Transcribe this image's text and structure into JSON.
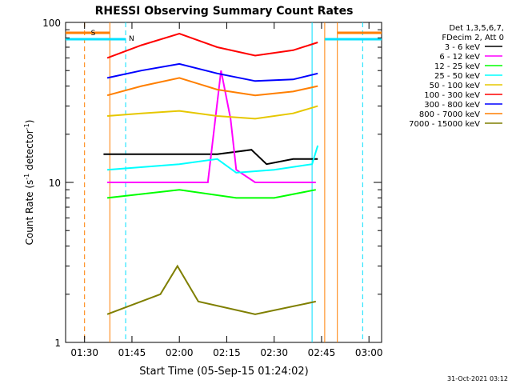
{
  "chart_data": {
    "type": "line",
    "title": "RHESSI Observing Summary Count Rates",
    "xlabel": "Start Time (05-Sep-15 01:24:02)",
    "ylabel_main": "Count Rate (s",
    "ylabel_sup1": "-1",
    "ylabel_mid": " detector",
    "ylabel_sup2": "-1",
    "ylabel_end": ")",
    "y_scale": "log",
    "ylim": [
      1,
      100
    ],
    "xlim": [
      "01:24",
      "03:04"
    ],
    "x_ticks": [
      "01:30",
      "01:45",
      "02:00",
      "02:15",
      "02:30",
      "02:45",
      "03:00"
    ],
    "y_ticks": [
      "1",
      "10",
      "100"
    ],
    "legend_position": "right",
    "legend_header": [
      "Det 1,3,5,6,7,",
      "FDecim 2, Att 0"
    ],
    "markers": {
      "S": "S",
      "N": "N"
    },
    "vlines": [
      {
        "time": "01:30",
        "color": "#ff7f00",
        "style": "dashed"
      },
      {
        "time": "01:38",
        "color": "#ff7f00",
        "style": "solid"
      },
      {
        "time": "01:43",
        "color": "#00e0ff",
        "style": "dashed"
      },
      {
        "time": "02:42",
        "color": "#00e0ff",
        "style": "solid"
      },
      {
        "time": "02:46",
        "color": "#ff7f00",
        "style": "solid"
      },
      {
        "time": "02:50",
        "color": "#ff7f00",
        "style": "solid"
      },
      {
        "time": "02:58",
        "color": "#00e0ff",
        "style": "dashed"
      }
    ],
    "series": [
      {
        "name": "3 - 6 keV",
        "color": "#000000",
        "values": [
          [
            1.6,
            15
          ],
          [
            2.2,
            15
          ],
          [
            2.38,
            16
          ],
          [
            2.46,
            13
          ],
          [
            2.6,
            14
          ],
          [
            2.73,
            14
          ]
        ]
      },
      {
        "name": "6 - 12 keV",
        "color": "#ff00ff",
        "values": [
          [
            1.62,
            10
          ],
          [
            2.15,
            10
          ],
          [
            2.22,
            50
          ],
          [
            2.27,
            25
          ],
          [
            2.3,
            12
          ],
          [
            2.4,
            10
          ],
          [
            2.72,
            10
          ]
        ]
      },
      {
        "name": "12 - 25 keV",
        "color": "#00ff00",
        "values": [
          [
            1.62,
            8
          ],
          [
            2.0,
            9
          ],
          [
            2.3,
            8
          ],
          [
            2.5,
            8
          ],
          [
            2.72,
            9
          ]
        ]
      },
      {
        "name": "25 - 50 keV",
        "color": "#00ffff",
        "values": [
          [
            1.62,
            12
          ],
          [
            2.0,
            13
          ],
          [
            2.2,
            14
          ],
          [
            2.3,
            11.5
          ],
          [
            2.5,
            12
          ],
          [
            2.7,
            13
          ],
          [
            2.73,
            17
          ]
        ]
      },
      {
        "name": "50 - 100 keV",
        "color": "#e6c700",
        "values": [
          [
            1.62,
            26
          ],
          [
            1.8,
            27
          ],
          [
            2.0,
            28
          ],
          [
            2.2,
            26
          ],
          [
            2.4,
            25
          ],
          [
            2.6,
            27
          ],
          [
            2.73,
            30
          ]
        ]
      },
      {
        "name": "100 - 300 keV",
        "color": "#ff0000",
        "values": [
          [
            1.62,
            60
          ],
          [
            1.8,
            72
          ],
          [
            2.0,
            85
          ],
          [
            2.2,
            70
          ],
          [
            2.4,
            62
          ],
          [
            2.6,
            67
          ],
          [
            2.73,
            75
          ]
        ]
      },
      {
        "name": "300 - 800 keV",
        "color": "#0000ff",
        "values": [
          [
            1.62,
            45
          ],
          [
            1.8,
            50
          ],
          [
            2.0,
            55
          ],
          [
            2.2,
            48
          ],
          [
            2.4,
            43
          ],
          [
            2.6,
            44
          ],
          [
            2.73,
            48
          ]
        ]
      },
      {
        "name": "800 - 7000 keV",
        "color": "#ff7f00",
        "values": [
          [
            1.62,
            35
          ],
          [
            1.8,
            40
          ],
          [
            2.0,
            45
          ],
          [
            2.2,
            38
          ],
          [
            2.4,
            35
          ],
          [
            2.6,
            37
          ],
          [
            2.73,
            40
          ]
        ]
      },
      {
        "name": "7000 - 15000 keV",
        "color": "#7f7f00",
        "values": [
          [
            1.62,
            1.5
          ],
          [
            1.9,
            2
          ],
          [
            1.99,
            3
          ],
          [
            2.1,
            1.8
          ],
          [
            2.4,
            1.5
          ],
          [
            2.72,
            1.8
          ]
        ]
      }
    ],
    "footer_date": "31-Oct-2021 03:12"
  }
}
